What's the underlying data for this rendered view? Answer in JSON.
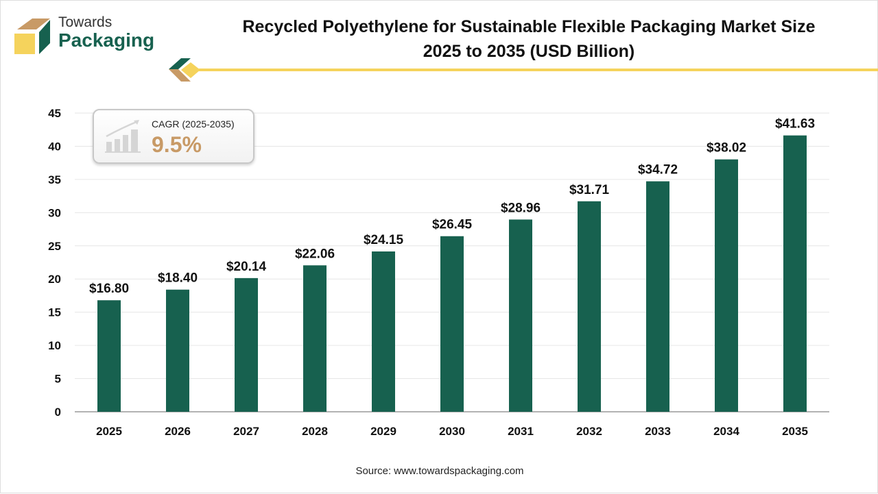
{
  "logo": {
    "line1": "Towards",
    "line2": "Packaging"
  },
  "cagr": {
    "label": "CAGR (2025-2035)",
    "value": "9.5%"
  },
  "source": "Source: www.towardspackaging.com",
  "colors": {
    "bar": "#17614f",
    "accent": "#f5d35c",
    "tan": "#c89a66"
  },
  "chart_data": {
    "type": "bar",
    "title": "Recycled Polyethylene for Sustainable Flexible Packaging Market Size 2025 to 2035 (USD Billion)",
    "title_line1": "Recycled Polyethylene for Sustainable Flexible Packaging Market Size",
    "title_line2": "2025 to 2035 (USD Billion)",
    "categories": [
      "2025",
      "2026",
      "2027",
      "2028",
      "2029",
      "2030",
      "2031",
      "2032",
      "2033",
      "2034",
      "2035"
    ],
    "values": [
      16.8,
      18.4,
      20.14,
      22.06,
      24.15,
      26.45,
      28.96,
      31.71,
      34.72,
      38.02,
      41.63
    ],
    "labels": [
      "$16.80",
      "$18.40",
      "$20.14",
      "$22.06",
      "$24.15",
      "$26.45",
      "$28.96",
      "$31.71",
      "$34.72",
      "$38.02",
      "$41.63"
    ],
    "yticks": [
      0,
      5,
      10,
      15,
      20,
      25,
      30,
      35,
      40,
      45
    ],
    "ylim": [
      0,
      45
    ],
    "xlabel": "",
    "ylabel": "",
    "grid": true
  }
}
